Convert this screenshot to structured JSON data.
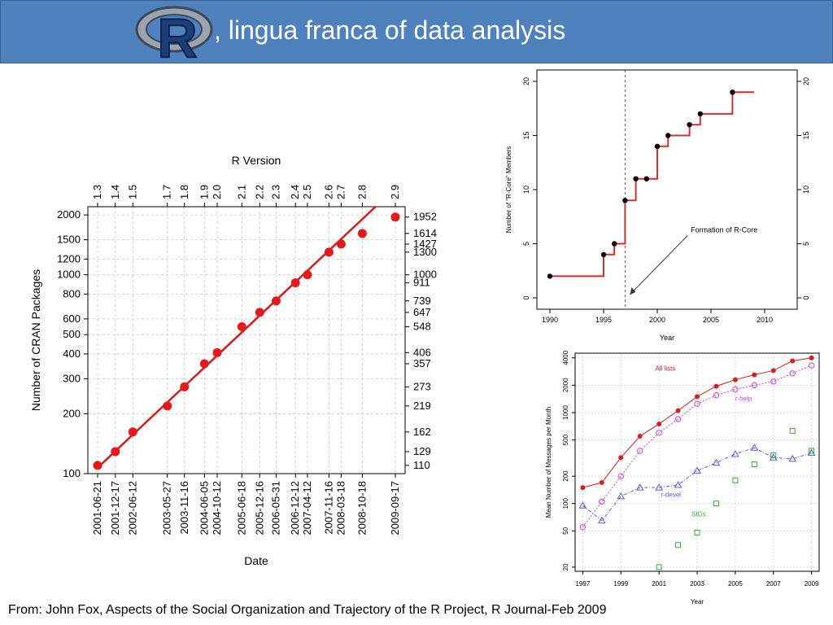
{
  "title_bar": {
    "text": ", lingua franca of data analysis",
    "logo_letter": "R",
    "accent": "#4f81bd"
  },
  "footer": {
    "text": "From: John Fox, Aspects of the Social Organization and Trajectory of the R Project, R Journal-Feb 2009"
  },
  "chart_data": [
    {
      "type": "scatter",
      "xlabel": "Date",
      "ylabel": "Number of CRAN Packages",
      "top_axis_label": "R Version",
      "y_scale": "log",
      "ylim": [
        100,
        2200
      ],
      "y_ticks": [
        100,
        200,
        300,
        400,
        500,
        600,
        800,
        1000,
        1200,
        1500,
        2000
      ],
      "grid": true,
      "point_color": "#e31a1c",
      "line_color": "#cc1f1f",
      "points": [
        {
          "date": "2001-06-21",
          "version": "1.3",
          "value": 110
        },
        {
          "date": "2001-12-17",
          "version": "1.4",
          "value": 129
        },
        {
          "date": "2002-06-12",
          "version": "1.5",
          "value": 162
        },
        {
          "date": "2003-05-27",
          "version": "1.7",
          "value": 219
        },
        {
          "date": "2003-11-16",
          "version": "1.8",
          "value": 273
        },
        {
          "date": "2004-06-05",
          "version": "1.9",
          "value": 357
        },
        {
          "date": "2004-10-12",
          "version": "2.0",
          "value": 406
        },
        {
          "date": "2005-06-18",
          "version": "2.1",
          "value": 548
        },
        {
          "date": "2005-12-16",
          "version": "2.2",
          "value": 647
        },
        {
          "date": "2006-05-31",
          "version": "2.3",
          "value": 739
        },
        {
          "date": "2006-12-12",
          "version": "2.4",
          "value": 911
        },
        {
          "date": "2007-04-12",
          "version": "2.5",
          "value": 1000
        },
        {
          "date": "2007-11-16",
          "version": "2.6",
          "value": 1300
        },
        {
          "date": "2008-03-18",
          "version": "2.7",
          "value": 1427
        },
        {
          "date": "2008-10-18",
          "version": "2.8",
          "value": 1614
        },
        {
          "date": "2009-09-17",
          "version": "2.9",
          "value": 1952
        }
      ],
      "fit_line": [
        {
          "date": "2001-06-21",
          "value": 107
        },
        {
          "date": "2009-03-01",
          "value": 2200
        }
      ]
    },
    {
      "type": "line",
      "xlabel": "Year",
      "ylabel": "Number of \"R-Core\" Members",
      "xlim": [
        1990,
        2010
      ],
      "ylim": [
        0,
        20
      ],
      "x_ticks": [
        1990,
        1995,
        2000,
        2005,
        2010
      ],
      "y_ticks": [
        0,
        5,
        10,
        15,
        20
      ],
      "step": true,
      "line_color": "#d32f2f",
      "points": [
        {
          "x": 1990,
          "y": 2
        },
        {
          "x": 1995,
          "y": 4
        },
        {
          "x": 1996,
          "y": 5
        },
        {
          "x": 1997,
          "y": 9
        },
        {
          "x": 1998,
          "y": 11
        },
        {
          "x": 1999,
          "y": 11
        },
        {
          "x": 2000,
          "y": 14
        },
        {
          "x": 2001,
          "y": 15
        },
        {
          "x": 2003,
          "y": 16
        },
        {
          "x": 2004,
          "y": 17
        },
        {
          "x": 2007,
          "y": 19
        }
      ],
      "step_end": 2009,
      "annotation": {
        "text": "Formation of R-Core",
        "x": 1997
      }
    },
    {
      "type": "line",
      "xlabel": "Year",
      "ylabel": "Mean Number of Messages per Month",
      "y_scale": "log",
      "ylim": [
        18,
        4500
      ],
      "xlim": [
        1996.6,
        2009.4
      ],
      "x_ticks": [
        1997,
        1999,
        2001,
        2003,
        2005,
        2007,
        2009
      ],
      "y_ticks": [
        20,
        50,
        100,
        200,
        500,
        1000,
        2000,
        4000
      ],
      "grid": true,
      "series": [
        {
          "name": "All lists",
          "color": "#d32020",
          "marker": "filled-circle",
          "x": [
            1997,
            1998,
            1999,
            2000,
            2001,
            2002,
            2003,
            2004,
            2005,
            2006,
            2007,
            2008,
            2009
          ],
          "values": [
            150,
            170,
            320,
            550,
            750,
            1050,
            1500,
            1950,
            2300,
            2600,
            2900,
            3700,
            4000
          ]
        },
        {
          "name": "r-help",
          "color": "#cc44cc",
          "marker": "open-circle",
          "x": [
            1997,
            1998,
            1999,
            2000,
            2001,
            2002,
            2003,
            2004,
            2005,
            2006,
            2007,
            2008,
            2009
          ],
          "values": [
            55,
            105,
            200,
            380,
            600,
            850,
            1250,
            1550,
            1800,
            2000,
            2200,
            2700,
            3300
          ]
        },
        {
          "name": "r-devel",
          "color": "#5a5acd",
          "marker": "open-triangle",
          "x": [
            1997,
            1998,
            1999,
            2000,
            2001,
            2002,
            2003,
            2004,
            2005,
            2006,
            2007,
            2008,
            2009
          ],
          "values": [
            95,
            65,
            120,
            150,
            150,
            160,
            230,
            280,
            350,
            410,
            320,
            310,
            360
          ]
        },
        {
          "name": "SIGs",
          "color": "#33aa33",
          "marker": "open-square",
          "x": [
            2001,
            2002,
            2003,
            2004,
            2005,
            2006,
            2007,
            2008,
            2009
          ],
          "values": [
            20,
            35,
            48,
            100,
            180,
            270,
            340,
            630,
            380
          ]
        }
      ]
    }
  ]
}
